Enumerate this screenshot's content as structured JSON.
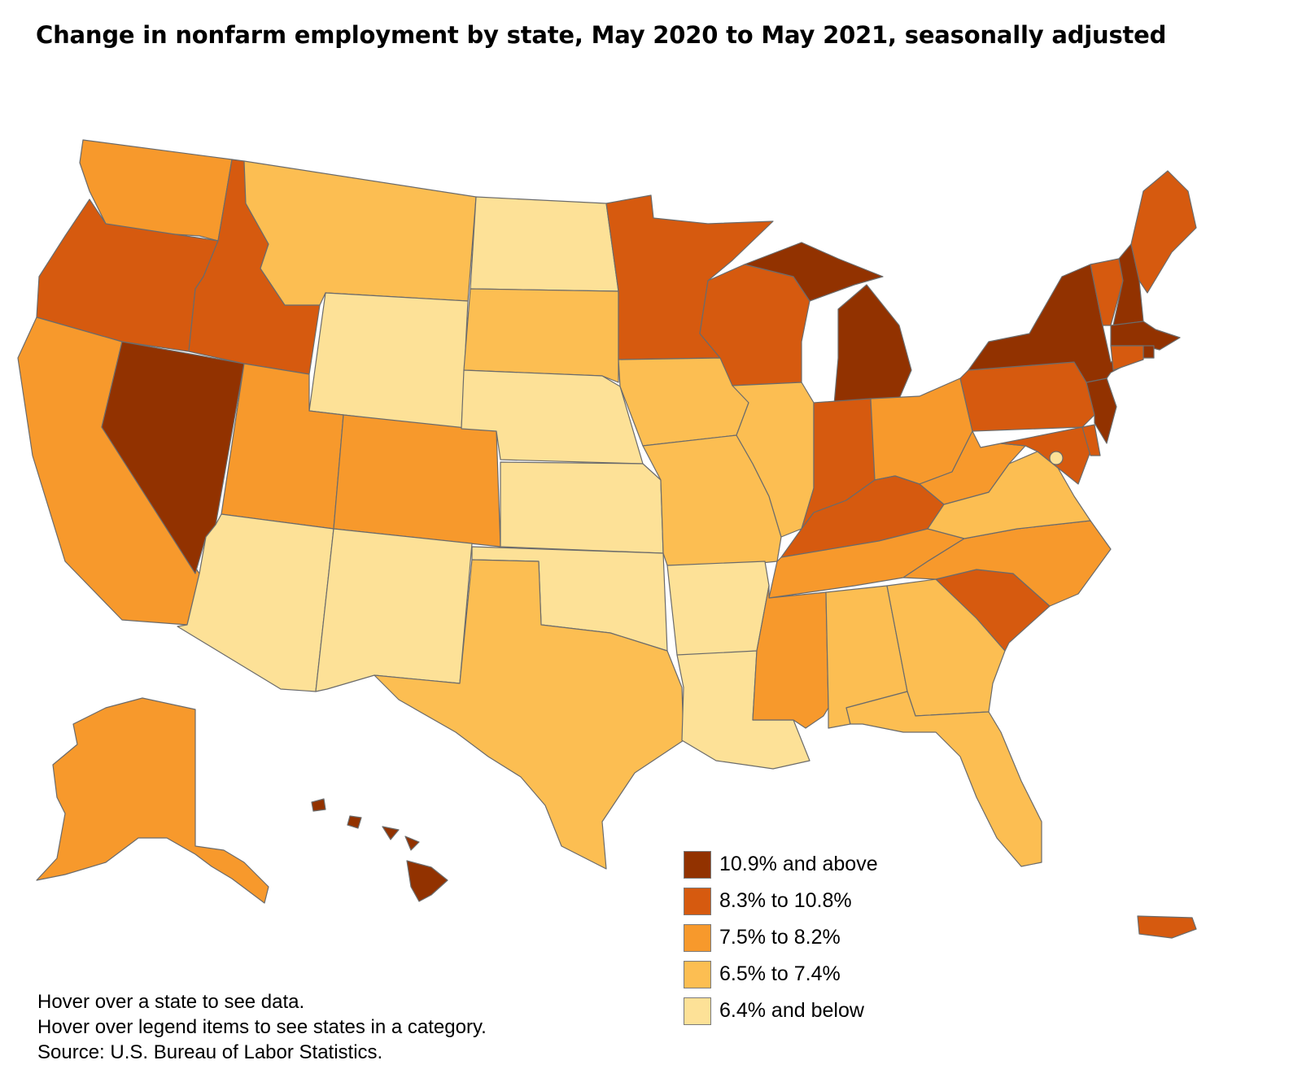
{
  "title": "Change in nonfarm employment by state, May 2020 to May 2021, seasonally adjusted",
  "legend": [
    {
      "label": "10.9% and above",
      "color": "#923200"
    },
    {
      "label": "8.3% to 10.8%",
      "color": "#d65a0f"
    },
    {
      "label": "7.5% to 8.2%",
      "color": "#f7992c"
    },
    {
      "label": "6.5% to 7.4%",
      "color": "#fcbe52"
    },
    {
      "label": "6.4% and below",
      "color": "#fde197"
    }
  ],
  "states": {
    "WA": 2,
    "OR": 1,
    "CA": 2,
    "NV": 0,
    "ID": 1,
    "MT": 3,
    "WY": 4,
    "UT": 2,
    "AZ": 4,
    "CO": 2,
    "NM": 4,
    "ND": 4,
    "SD": 3,
    "NE": 4,
    "KS": 4,
    "OK": 4,
    "TX": 3,
    "MN": 1,
    "IA": 3,
    "MO": 3,
    "AR": 4,
    "LA": 4,
    "WI": 1,
    "IL": 3,
    "MI": 0,
    "IN": 1,
    "OH": 2,
    "KY": 1,
    "TN": 2,
    "MS": 2,
    "AL": 3,
    "GA": 3,
    "FL": 3,
    "SC": 1,
    "NC": 2,
    "VA": 3,
    "WV": 2,
    "PA": 1,
    "NY": 0,
    "VT": 1,
    "NH": 0,
    "ME": 1,
    "MA": 0,
    "RI": 0,
    "CT": 1,
    "NJ": 0,
    "DE": 1,
    "MD": 1,
    "DC": 4,
    "AK": 2,
    "HI": 0,
    "PR": 1
  },
  "notes": [
    "Hover over a state to see data.",
    "Hover over legend items to see states in a category.",
    "Source: U.S. Bureau of Labor Statistics."
  ]
}
